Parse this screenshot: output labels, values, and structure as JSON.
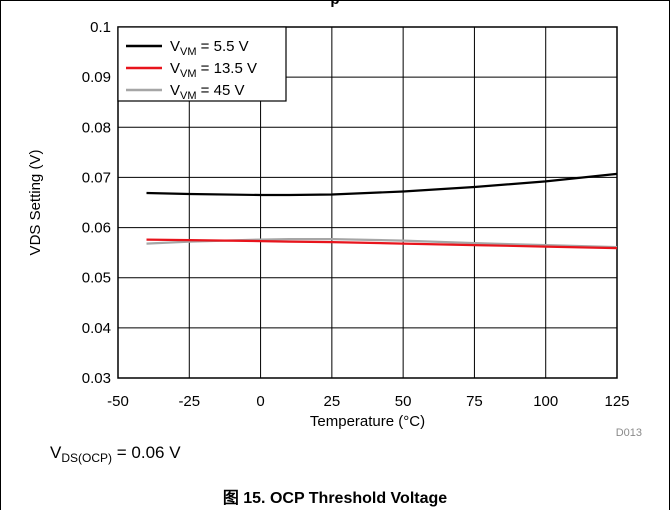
{
  "header": {
    "title_fragment": "p"
  },
  "chart_data": {
    "type": "line",
    "title": "",
    "xlabel": "Temperature (°C)",
    "ylabel": "VDS Setting (V)",
    "xlim": [
      -50,
      125
    ],
    "ylim": [
      0.03,
      0.1
    ],
    "xticks": [
      -50,
      -25,
      0,
      25,
      50,
      75,
      100,
      125
    ],
    "yticks": [
      0.03,
      0.04,
      0.05,
      0.06,
      0.07,
      0.08,
      0.09,
      0.1
    ],
    "xtick_labels": [
      "-50",
      "-25",
      "0",
      "25",
      "50",
      "75",
      "100",
      "125"
    ],
    "ytick_labels": [
      "0.03",
      "0.04",
      "0.05",
      "0.06",
      "0.07",
      "0.08",
      "0.09",
      "0.1"
    ],
    "grid": true,
    "legend_position": "top-left",
    "x": [
      -40,
      -25,
      0,
      10,
      25,
      50,
      75,
      100,
      125
    ],
    "series": [
      {
        "name": "VVM = 5.5 V",
        "name_main": "V",
        "name_sub": "VM",
        "name_value": " = 5.5 V",
        "color": "#000000",
        "values": [
          0.0669,
          0.0667,
          0.0665,
          0.0665,
          0.0666,
          0.0672,
          0.0681,
          0.0692,
          0.0707
        ]
      },
      {
        "name": "VVM = 13.5 V",
        "name_main": "V",
        "name_sub": "VM",
        "name_value": " = 13.5 V",
        "color": "#e8141c",
        "values": [
          0.0576,
          0.0575,
          0.0573,
          0.0572,
          0.0571,
          0.0568,
          0.0565,
          0.0562,
          0.0559
        ]
      },
      {
        "name": "VVM = 45 V",
        "name_main": "V",
        "name_sub": "VM",
        "name_value": " = 45 V",
        "color": "#a6a6a6",
        "values": [
          0.0568,
          0.0572,
          0.0576,
          0.0577,
          0.0577,
          0.0574,
          0.0569,
          0.0565,
          0.0561
        ]
      }
    ],
    "figure_id": "D013"
  },
  "note": {
    "main": "V",
    "sub": "DS(OCP)",
    "value": " = 0.06 V"
  },
  "caption": "图 15. OCP Threshold Voltage"
}
